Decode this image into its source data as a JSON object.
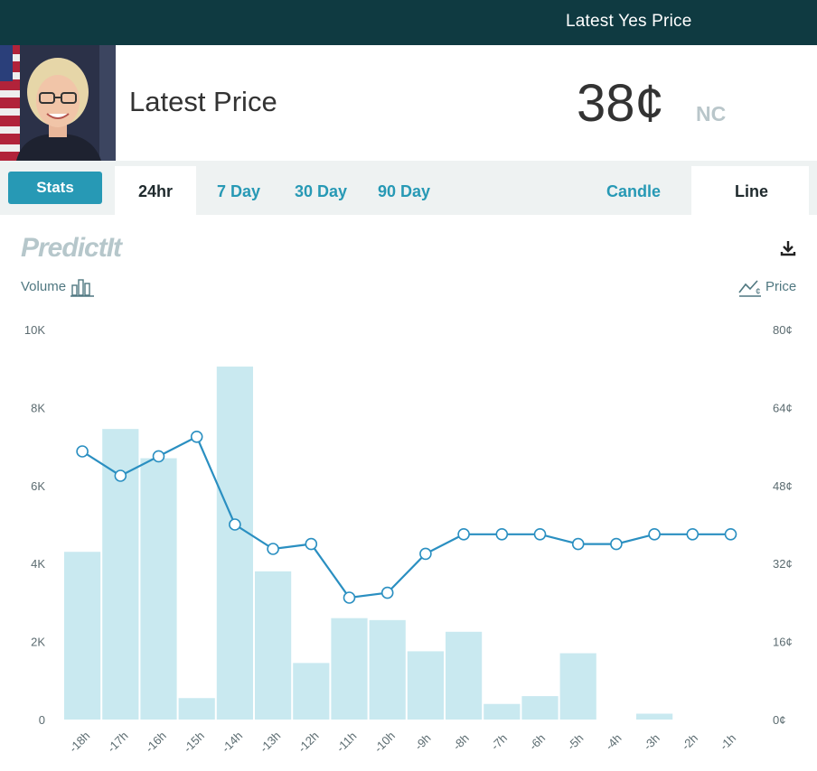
{
  "topbar": {
    "title": "Latest Yes Price"
  },
  "header": {
    "latest_label": "Latest Price",
    "price": "38¢",
    "change": "NC"
  },
  "tabs": {
    "stats": "Stats",
    "range": [
      "24hr",
      "7 Day",
      "30 Day",
      "90 Day"
    ],
    "active_range": "24hr",
    "chart_types": [
      "Candle",
      "Line"
    ],
    "active_chart_type": "Line"
  },
  "chart": {
    "logo": "PredictIt",
    "left_axis_title": "Volume",
    "right_axis_title": "Price"
  },
  "colors": {
    "topbar": "#0f3a41",
    "accent": "#2799b5",
    "bar": "#c9e9f0",
    "line": "#2a8fc1"
  },
  "chart_data": {
    "type": "bar+line",
    "categories": [
      "-18h",
      "-17h",
      "-16h",
      "-15h",
      "-14h",
      "-13h",
      "-12h",
      "-11h",
      "-10h",
      "-9h",
      "-8h",
      "-7h",
      "-6h",
      "-5h",
      "-4h",
      "-3h",
      "-2h",
      "-1h"
    ],
    "series": [
      {
        "name": "Volume",
        "type": "bar",
        "axis": "left",
        "values": [
          4300,
          7450,
          6700,
          550,
          9050,
          3800,
          1450,
          2600,
          2550,
          1750,
          2250,
          400,
          600,
          1700,
          0,
          150,
          0,
          0
        ]
      },
      {
        "name": "Price",
        "type": "line",
        "axis": "right",
        "values": [
          55,
          50,
          54,
          58,
          40,
          35,
          36,
          25,
          26,
          34,
          38,
          38,
          38,
          36,
          36,
          38,
          38,
          38
        ]
      }
    ],
    "left_axis": {
      "ticks": [
        "0",
        "2K",
        "4K",
        "6K",
        "8K",
        "10K"
      ],
      "range": [
        0,
        10000
      ]
    },
    "right_axis": {
      "ticks": [
        "0¢",
        "16¢",
        "32¢",
        "48¢",
        "64¢",
        "80¢"
      ],
      "range": [
        0,
        80
      ]
    },
    "grid": false
  }
}
